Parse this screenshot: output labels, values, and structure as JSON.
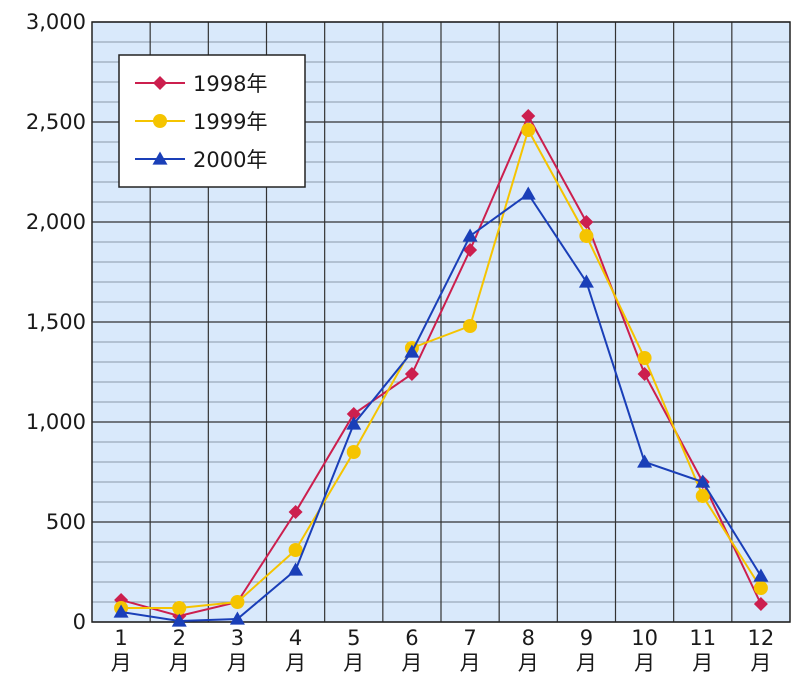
{
  "chart_data": {
    "type": "line",
    "title": "",
    "xlabel": "",
    "ylabel": "",
    "categories": [
      {
        "num": "1",
        "unit": "月"
      },
      {
        "num": "2",
        "unit": "月"
      },
      {
        "num": "3",
        "unit": "月"
      },
      {
        "num": "4",
        "unit": "月"
      },
      {
        "num": "5",
        "unit": "月"
      },
      {
        "num": "6",
        "unit": "月"
      },
      {
        "num": "7",
        "unit": "月"
      },
      {
        "num": "8",
        "unit": "月"
      },
      {
        "num": "9",
        "unit": "月"
      },
      {
        "num": "10",
        "unit": "月"
      },
      {
        "num": "11",
        "unit": "月"
      },
      {
        "num": "12",
        "unit": "月"
      }
    ],
    "y_ticks": [
      {
        "value": 0,
        "label": "0"
      },
      {
        "value": 500,
        "label": "500"
      },
      {
        "value": 1000,
        "label": "1,000"
      },
      {
        "value": 1500,
        "label": "1,500"
      },
      {
        "value": 2000,
        "label": "2,000"
      },
      {
        "value": 2500,
        "label": "2,500"
      },
      {
        "value": 3000,
        "label": "3,000"
      }
    ],
    "ylim": [
      0,
      3000
    ],
    "y_minor_step": 100,
    "grid": true,
    "legend_position": "top-left",
    "plot_background": "#d9e9fb",
    "series": [
      {
        "name": "1998年",
        "marker": "diamond",
        "color": "#cc1f4e",
        "values": [
          110,
          30,
          100,
          550,
          1040,
          1240,
          1860,
          2530,
          2000,
          1240,
          700,
          90
        ]
      },
      {
        "name": "1999年",
        "marker": "circle",
        "color": "#f5c400",
        "values": [
          70,
          70,
          100,
          360,
          850,
          1370,
          1480,
          2460,
          1930,
          1320,
          630,
          170
        ]
      },
      {
        "name": "2000年",
        "marker": "triangle",
        "color": "#1a3fb8",
        "values": [
          50,
          5,
          15,
          260,
          990,
          1350,
          1930,
          2140,
          1700,
          800,
          700,
          230
        ]
      }
    ]
  }
}
